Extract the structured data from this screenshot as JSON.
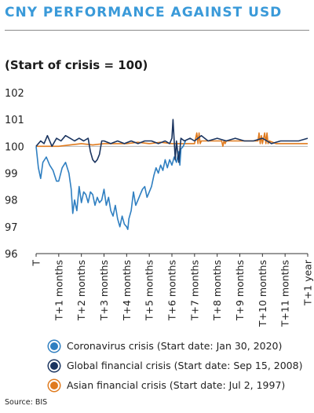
{
  "title": "CNY PERFORMANCE AGAINST USD",
  "subtitle": "(Start of crisis = 100)",
  "source": "Source: BIS",
  "chart_data": {
    "type": "line",
    "ylim": [
      96,
      102
    ],
    "yticks": [
      "102",
      "101",
      "100",
      "99",
      "98",
      "97",
      "96"
    ],
    "xlim": [
      0,
      12
    ],
    "xticks": [
      "T",
      "T+1 months",
      "T+2 months",
      "T+3 months",
      "T+4 months",
      "T+5 months",
      "T+6 months",
      "T+7 months",
      "T+8 months",
      "T+9 months",
      "T+10 months",
      "T+11 months",
      "T+1 year"
    ],
    "series": [
      {
        "name": "Coronavirus crisis (Start date: Jan 30, 2020)",
        "color": "#2f7fc1",
        "x": [
          0,
          0.1,
          0.2,
          0.3,
          0.45,
          0.6,
          0.75,
          0.9,
          1.0,
          1.15,
          1.3,
          1.45,
          1.55,
          1.62,
          1.7,
          1.8,
          1.9,
          2.0,
          2.1,
          2.2,
          2.3,
          2.4,
          2.5,
          2.6,
          2.7,
          2.8,
          2.9,
          3.0,
          3.1,
          3.2,
          3.3,
          3.4,
          3.5,
          3.6,
          3.7,
          3.8,
          3.9,
          4.0,
          4.05,
          4.1,
          4.2,
          4.3,
          4.4,
          4.5,
          4.6,
          4.7,
          4.8,
          4.9,
          5.0,
          5.1,
          5.2,
          5.3,
          5.4,
          5.5,
          5.6,
          5.7,
          5.8,
          5.9,
          6.0,
          6.1,
          6.2,
          6.3,
          6.35,
          6.4,
          6.5,
          6.6
        ],
        "values": [
          100.0,
          99.2,
          98.8,
          99.4,
          99.6,
          99.3,
          99.1,
          98.7,
          98.7,
          99.2,
          99.4,
          99.0,
          98.4,
          97.5,
          98.0,
          97.6,
          98.5,
          97.9,
          98.3,
          98.2,
          97.9,
          98.3,
          98.2,
          97.8,
          98.1,
          97.9,
          98.0,
          98.4,
          97.8,
          98.1,
          97.6,
          97.4,
          97.8,
          97.3,
          97.0,
          97.4,
          97.1,
          97.0,
          96.9,
          97.3,
          97.6,
          98.3,
          97.8,
          98.0,
          98.2,
          98.4,
          98.5,
          98.1,
          98.3,
          98.5,
          98.9,
          99.2,
          99.0,
          99.3,
          99.1,
          99.5,
          99.2,
          99.5,
          99.3,
          99.6,
          99.4,
          99.8,
          99.3,
          99.9,
          100.0,
          100.2
        ]
      },
      {
        "name": "Global financial crisis (Start date: Sep 15, 2008)",
        "color": "#1b3560",
        "x": [
          0,
          0.2,
          0.35,
          0.5,
          0.7,
          0.9,
          1.1,
          1.3,
          1.5,
          1.7,
          1.9,
          2.1,
          2.3,
          2.4,
          2.5,
          2.6,
          2.7,
          2.8,
          2.9,
          3.0,
          3.3,
          3.6,
          3.9,
          4.2,
          4.5,
          4.8,
          5.1,
          5.4,
          5.7,
          5.9,
          6.0,
          6.05,
          6.1,
          6.15,
          6.2,
          6.3,
          6.4,
          6.55,
          6.8,
          7.0,
          7.3,
          7.6,
          8.0,
          8.4,
          8.8,
          9.2,
          9.6,
          10.0,
          10.4,
          10.8,
          11.2,
          11.6,
          12.0
        ],
        "values": [
          100.0,
          100.2,
          100.1,
          100.4,
          100.0,
          100.3,
          100.2,
          100.4,
          100.3,
          100.2,
          100.3,
          100.2,
          100.3,
          99.8,
          99.5,
          99.4,
          99.5,
          99.7,
          100.2,
          100.2,
          100.1,
          100.2,
          100.1,
          100.2,
          100.1,
          100.2,
          100.2,
          100.1,
          100.2,
          100.1,
          100.3,
          101.0,
          100.2,
          99.5,
          100.2,
          99.4,
          100.3,
          100.2,
          100.3,
          100.2,
          100.4,
          100.2,
          100.3,
          100.2,
          100.3,
          100.2,
          100.2,
          100.3,
          100.1,
          100.2,
          100.2,
          100.2,
          100.3
        ]
      },
      {
        "name": "Asian financial crisis (Start date: Jul 2, 1997)",
        "color": "#e07b1f",
        "x": [
          0,
          0.5,
          1.0,
          1.5,
          2.0,
          2.5,
          3.0,
          3.5,
          4.0,
          4.5,
          5.0,
          5.5,
          6.0,
          6.5,
          7.0,
          7.1,
          7.15,
          7.2,
          7.25,
          7.3,
          7.6,
          7.9,
          8.2,
          8.25,
          8.3,
          8.35,
          8.4,
          8.6,
          9.0,
          9.4,
          9.8,
          9.85,
          9.9,
          9.95,
          10.0,
          10.1,
          10.15,
          10.2,
          10.25,
          10.3,
          10.6,
          11.0,
          11.5,
          12.0
        ],
        "values": [
          100.0,
          100.0,
          100.0,
          100.05,
          100.1,
          100.05,
          100.1,
          100.1,
          100.1,
          100.15,
          100.1,
          100.15,
          100.1,
          100.1,
          100.1,
          100.5,
          100.1,
          100.5,
          100.1,
          100.2,
          100.2,
          100.2,
          100.2,
          100.0,
          100.2,
          100.1,
          100.2,
          100.2,
          100.2,
          100.2,
          100.2,
          100.5,
          100.1,
          100.4,
          100.1,
          100.5,
          100.1,
          100.5,
          100.1,
          100.2,
          100.1,
          100.1,
          100.1,
          100.1
        ]
      }
    ]
  }
}
